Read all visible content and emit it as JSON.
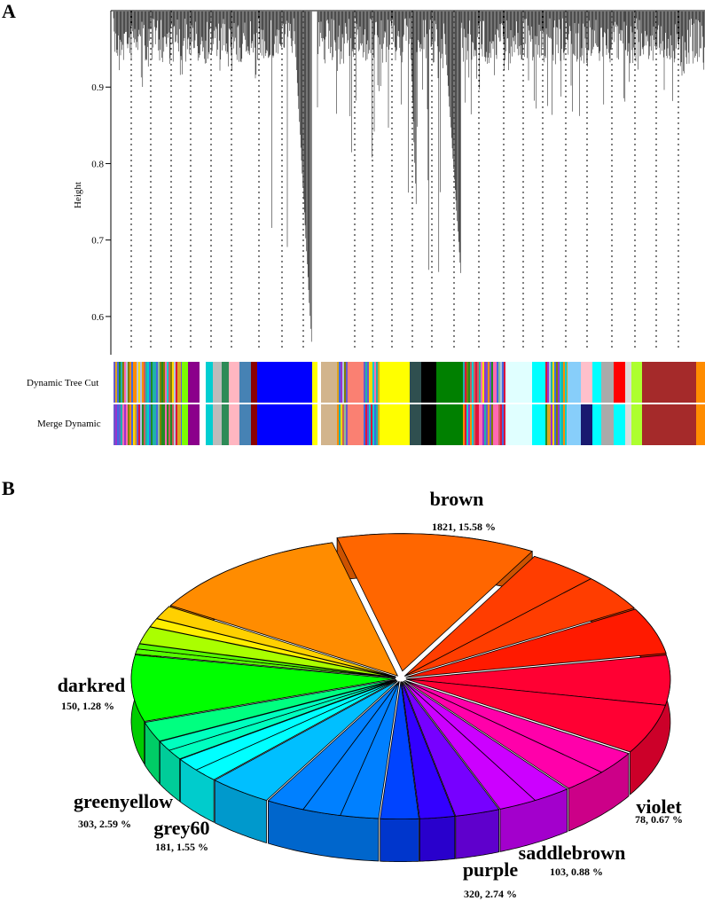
{
  "panels": {
    "a": "A",
    "b": "B"
  },
  "chart_data": [
    {
      "type": "dendrogram",
      "ylabel": "Height",
      "ylim": [
        0.55,
        1.0
      ],
      "yticks": [
        0.6,
        0.7,
        0.8,
        0.9
      ],
      "tracks": [
        "Dynamic Tree Cut",
        "Merge Dynamic"
      ]
    },
    {
      "type": "pie",
      "style": "3d",
      "labeled_slices": [
        {
          "name": "brown",
          "count": 1821,
          "percent": 15.58,
          "label": "1821, 15.58 %"
        },
        {
          "name": "violet",
          "count": 78,
          "percent": 0.67,
          "label": "78, 0.67 %"
        },
        {
          "name": "saddlebrown",
          "count": 103,
          "percent": 0.88,
          "label": "103, 0.88 %"
        },
        {
          "name": "purple",
          "count": 320,
          "percent": 2.74,
          "label": "320, 2.74 %"
        },
        {
          "name": "grey60",
          "count": 181,
          "percent": 1.55,
          "label": "181, 1.55 %"
        },
        {
          "name": "greenyellow",
          "count": 303,
          "percent": 2.59,
          "label": "303, 2.59 %"
        },
        {
          "name": "darkred",
          "count": 150,
          "percent": 1.28,
          "label": "150, 1.28 %"
        }
      ],
      "slice_colors_in_order": [
        "#ff6600",
        "#ff3d00",
        "#ff1a00",
        "#ff0033",
        "#ff00aa",
        "#cc00ff",
        "#7700ff",
        "#3300ff",
        "#0044ff",
        "#0080ff",
        "#00bfff",
        "#00ffff",
        "#00ffbf",
        "#00ff80",
        "#00ff00",
        "#55ff00",
        "#aaff00",
        "#ffee00",
        "#ffd000",
        "#ff8c00"
      ]
    }
  ]
}
